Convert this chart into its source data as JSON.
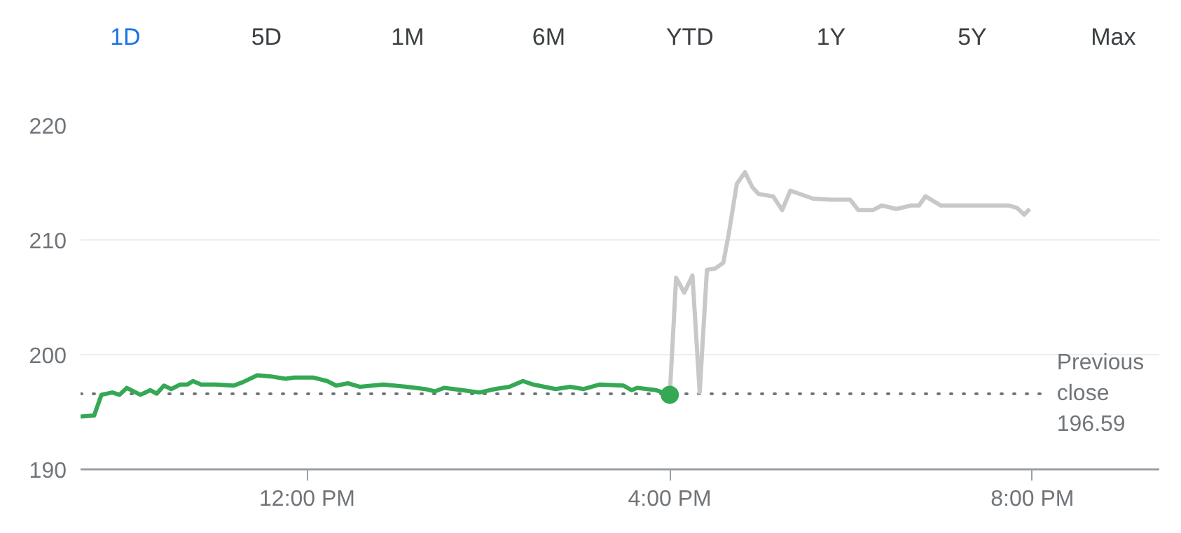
{
  "chart_data": {
    "type": "line",
    "annotations": [
      "1D",
      "5D",
      "1M",
      "6M",
      "YTD",
      "1Y",
      "5Y",
      "Max"
    ],
    "xlim": [
      9.5,
      21.4
    ],
    "ylim": [
      190,
      220
    ],
    "xticks": [
      {
        "value": 12,
        "label": "12:00 PM"
      },
      {
        "value": 16,
        "label": "4:00 PM"
      },
      {
        "value": 20,
        "label": "8:00 PM"
      }
    ],
    "yticks": [
      190,
      200,
      210,
      220
    ],
    "grid": "y",
    "marker": "none",
    "line_style": "solid",
    "ref_lines": [
      {
        "axis": "y",
        "value": 196.59,
        "label": "Previous close 196.59",
        "color": "#70757a",
        "line_style": "dotted"
      }
    ],
    "series": [
      {
        "color": "#34a853",
        "x": [
          9.5,
          9.65,
          9.73,
          9.85,
          9.93,
          10.01,
          10.16,
          10.27,
          10.34,
          10.42,
          10.5,
          10.6,
          10.68,
          10.74,
          10.83,
          10.99,
          11.19,
          11.29,
          11.45,
          11.6,
          11.76,
          11.86,
          12.07,
          12.22,
          12.32,
          12.45,
          12.58,
          12.84,
          13.1,
          13.3,
          13.41,
          13.51,
          13.71,
          13.9,
          14.07,
          14.23,
          14.38,
          14.49,
          14.74,
          14.9,
          15.05,
          15.23,
          15.49,
          15.58,
          15.64,
          15.85,
          16.0
        ],
        "values": [
          194.6,
          194.7,
          196.5,
          196.7,
          196.5,
          197.1,
          196.5,
          196.9,
          196.6,
          197.3,
          197.0,
          197.4,
          197.4,
          197.7,
          197.4,
          197.4,
          197.3,
          197.6,
          198.2,
          198.1,
          197.9,
          198.0,
          198.0,
          197.7,
          197.3,
          197.5,
          197.2,
          197.4,
          197.2,
          197.0,
          196.8,
          197.1,
          196.9,
          196.7,
          197.0,
          197.2,
          197.7,
          197.4,
          197.0,
          197.2,
          197.0,
          197.4,
          197.3,
          196.9,
          197.1,
          196.9,
          196.5
        ]
      },
      {
        "color": "#c8c8c8",
        "x": [
          16.0,
          16.07,
          16.16,
          16.25,
          16.33,
          16.41,
          16.5,
          16.59,
          16.65,
          16.74,
          16.83,
          16.91,
          16.98,
          17.14,
          17.24,
          17.33,
          17.58,
          17.78,
          17.99,
          18.08,
          18.24,
          18.34,
          18.5,
          18.66,
          18.75,
          18.82,
          18.99,
          19.27,
          19.53,
          19.74,
          19.83,
          19.91,
          19.97
        ],
        "values": [
          196.5,
          206.7,
          205.4,
          206.9,
          196.7,
          207.4,
          207.5,
          208.0,
          210.5,
          214.9,
          215.9,
          214.6,
          214.0,
          213.8,
          212.6,
          214.3,
          213.6,
          213.5,
          213.5,
          212.6,
          212.6,
          213.0,
          212.7,
          213.0,
          213.0,
          213.8,
          213.0,
          213.0,
          213.0,
          213.0,
          212.8,
          212.2,
          212.7
        ]
      },
      {
        "type": "scatter",
        "marker": "circle",
        "color": "#34a853",
        "x": [
          16.0
        ],
        "values": [
          196.5
        ]
      }
    ]
  }
}
